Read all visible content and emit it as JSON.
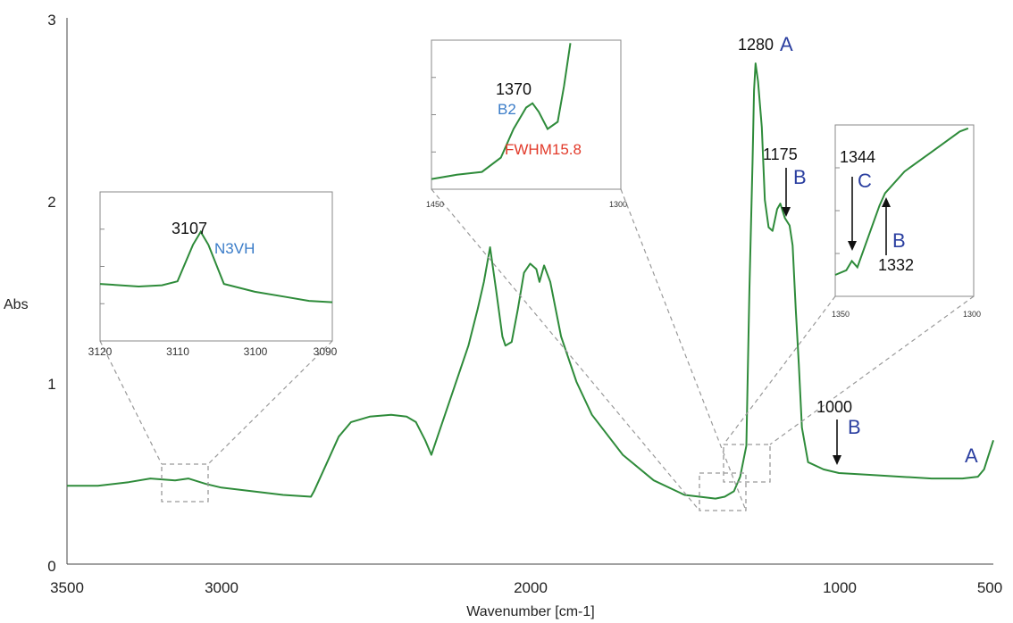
{
  "chart_data": {
    "type": "line",
    "title": "",
    "xlabel": "Wavenumber [cm-1]",
    "ylabel": "Abs",
    "xlim": [
      3500,
      500
    ],
    "ylim": [
      0,
      3
    ],
    "x_ticks": [
      "3500",
      "3000",
      "2000",
      "1000",
      "500"
    ],
    "y_ticks": [
      "0",
      "1",
      "2",
      "3"
    ],
    "grid": false,
    "series_color": "#2e8b3a",
    "series": [
      {
        "points": [
          [
            3500,
            0.43
          ],
          [
            3400,
            0.43
          ],
          [
            3300,
            0.45
          ],
          [
            3230,
            0.47
          ],
          [
            3150,
            0.46
          ],
          [
            3107,
            0.47
          ],
          [
            3050,
            0.44
          ],
          [
            3000,
            0.42
          ],
          [
            2900,
            0.4
          ],
          [
            2800,
            0.38
          ],
          [
            2710,
            0.37
          ],
          [
            2700,
            0.4
          ],
          [
            2660,
            0.55
          ],
          [
            2620,
            0.7
          ],
          [
            2580,
            0.78
          ],
          [
            2520,
            0.81
          ],
          [
            2450,
            0.82
          ],
          [
            2400,
            0.81
          ],
          [
            2370,
            0.78
          ],
          [
            2340,
            0.68
          ],
          [
            2320,
            0.6
          ],
          [
            2300,
            0.7
          ],
          [
            2250,
            0.95
          ],
          [
            2200,
            1.2
          ],
          [
            2170,
            1.4
          ],
          [
            2150,
            1.55
          ],
          [
            2130,
            1.74
          ],
          [
            2110,
            1.5
          ],
          [
            2090,
            1.25
          ],
          [
            2080,
            1.2
          ],
          [
            2060,
            1.22
          ],
          [
            2040,
            1.4
          ],
          [
            2020,
            1.6
          ],
          [
            2000,
            1.65
          ],
          [
            1980,
            1.62
          ],
          [
            1970,
            1.55
          ],
          [
            1955,
            1.64
          ],
          [
            1935,
            1.55
          ],
          [
            1900,
            1.25
          ],
          [
            1850,
            1.0
          ],
          [
            1800,
            0.82
          ],
          [
            1700,
            0.6
          ],
          [
            1600,
            0.46
          ],
          [
            1500,
            0.38
          ],
          [
            1400,
            0.36
          ],
          [
            1370,
            0.37
          ],
          [
            1340,
            0.4
          ],
          [
            1320,
            0.48
          ],
          [
            1300,
            0.65
          ],
          [
            1290,
            1.5
          ],
          [
            1280,
            2.2
          ],
          [
            1275,
            2.6
          ],
          [
            1270,
            2.75
          ],
          [
            1262,
            2.65
          ],
          [
            1250,
            2.4
          ],
          [
            1240,
            2.0
          ],
          [
            1228,
            1.85
          ],
          [
            1215,
            1.83
          ],
          [
            1200,
            1.95
          ],
          [
            1190,
            1.98
          ],
          [
            1175,
            1.9
          ],
          [
            1160,
            1.86
          ],
          [
            1150,
            1.75
          ],
          [
            1140,
            1.4
          ],
          [
            1130,
            1.1
          ],
          [
            1120,
            0.75
          ],
          [
            1100,
            0.56
          ],
          [
            1050,
            0.52
          ],
          [
            1000,
            0.5
          ],
          [
            900,
            0.49
          ],
          [
            800,
            0.48
          ],
          [
            700,
            0.47
          ],
          [
            600,
            0.47
          ],
          [
            550,
            0.48
          ],
          [
            530,
            0.52
          ],
          [
            515,
            0.6
          ],
          [
            500,
            0.68
          ]
        ]
      }
    ],
    "annotations": [
      {
        "label": "1280",
        "letter": "A",
        "x": 1280
      },
      {
        "label": "1175",
        "letter": "B",
        "x": 1175
      },
      {
        "label": "1000",
        "letter": "B",
        "x": 1000
      },
      {
        "label": "",
        "letter": "A",
        "x": 520
      }
    ],
    "insets": [
      {
        "id": "inset-3107",
        "xlim": [
          3120,
          3090
        ],
        "x_ticks": [
          "3120",
          "3110",
          "3100",
          "3090"
        ],
        "peak_label": "3107",
        "peak_sublabel": "N3VH",
        "points": [
          [
            3120,
            0.3
          ],
          [
            3115,
            0.28
          ],
          [
            3112,
            0.29
          ],
          [
            3110,
            0.32
          ],
          [
            3108,
            0.6
          ],
          [
            3107,
            0.7
          ],
          [
            3106,
            0.6
          ],
          [
            3104,
            0.3
          ],
          [
            3100,
            0.24
          ],
          [
            3096,
            0.2
          ],
          [
            3093,
            0.17
          ],
          [
            3090,
            0.16
          ]
        ]
      },
      {
        "id": "inset-1370",
        "xlim": [
          1450,
          1300
        ],
        "x_ticks": [
          "1450",
          "1300"
        ],
        "peak_label": "1370",
        "peak_sublabel": "B2",
        "note": "FWHM15.8",
        "points": [
          [
            1450,
            0.05
          ],
          [
            1430,
            0.08
          ],
          [
            1410,
            0.1
          ],
          [
            1395,
            0.2
          ],
          [
            1385,
            0.4
          ],
          [
            1375,
            0.55
          ],
          [
            1370,
            0.58
          ],
          [
            1365,
            0.52
          ],
          [
            1358,
            0.4
          ],
          [
            1350,
            0.45
          ],
          [
            1345,
            0.7
          ],
          [
            1340,
            1.0
          ]
        ]
      },
      {
        "id": "inset-1344",
        "xlim": [
          1350,
          1300
        ],
        "x_ticks": [
          "1350",
          "1300"
        ],
        "peak_label": "1344",
        "peak_letter": "C",
        "second_label": "1332",
        "second_letter": "B",
        "points": [
          [
            1350,
            0.05
          ],
          [
            1346,
            0.08
          ],
          [
            1344,
            0.14
          ],
          [
            1342,
            0.1
          ],
          [
            1338,
            0.3
          ],
          [
            1334,
            0.5
          ],
          [
            1332,
            0.58
          ],
          [
            1325,
            0.72
          ],
          [
            1315,
            0.85
          ],
          [
            1305,
            0.98
          ],
          [
            1302,
            1.0
          ]
        ]
      }
    ]
  }
}
